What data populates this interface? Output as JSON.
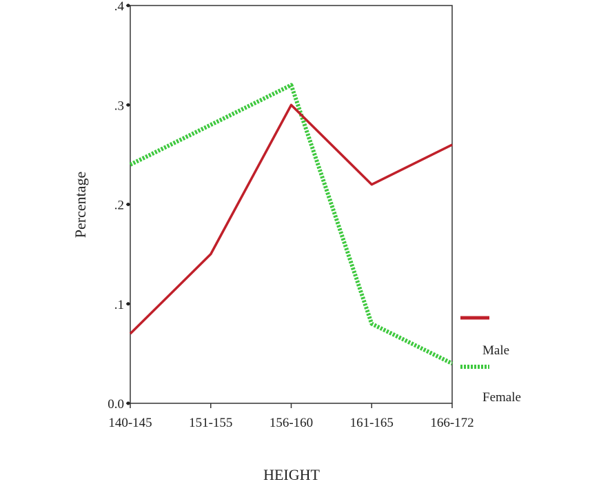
{
  "chart_data": {
    "type": "line",
    "categories": [
      "140-145",
      "151-155",
      "156-160",
      "161-165",
      "166-172"
    ],
    "series": [
      {
        "name": "Male",
        "values": [
          0.07,
          0.15,
          0.3,
          0.22,
          0.26
        ],
        "color": "#c0202a",
        "style": "solid"
      },
      {
        "name": "Female",
        "values": [
          0.24,
          0.28,
          0.32,
          0.08,
          0.04
        ],
        "color": "#3ec83e",
        "style": "dotted"
      }
    ],
    "title": "",
    "xlabel": "HEIGHT",
    "ylabel": "Percentage",
    "ylim": [
      0,
      0.4
    ],
    "yticks": [
      0,
      0.1,
      0.2,
      0.3,
      0.4
    ],
    "ytick_labels": [
      "0.0",
      ".1",
      ".2",
      ".3",
      ".4"
    ],
    "grid": false,
    "legend_position": "right"
  }
}
